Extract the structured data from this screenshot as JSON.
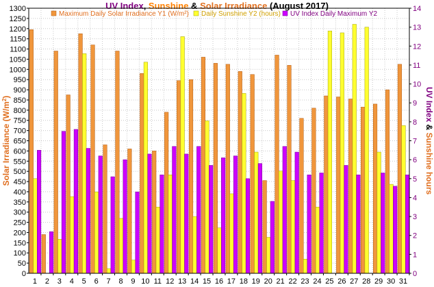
{
  "chart_data": {
    "type": "bar",
    "title_parts": [
      {
        "text": "UV Index",
        "color": "#800080"
      },
      {
        "text": ", ",
        "color": "#000000"
      },
      {
        "text": "Sunshine",
        "color": "#FF8000"
      },
      {
        "text": " & ",
        "color": "#000000"
      },
      {
        "text": "Solar Irradiance",
        "color": "#E07020"
      },
      {
        "text": " (August 2017)",
        "color": "#000000"
      }
    ],
    "categories": [
      "1",
      "2",
      "3",
      "4",
      "5",
      "6",
      "7",
      "8",
      "9",
      "10",
      "11",
      "12",
      "13",
      "14",
      "15",
      "16",
      "17",
      "18",
      "19",
      "20",
      "21",
      "22",
      "23",
      "24",
      "25",
      "26",
      "27",
      "28",
      "29",
      "30",
      "31"
    ],
    "y1": {
      "label_main": "Solar Irradiance (W/m",
      "label_sup": "2",
      "label_end": ")",
      "min": 0,
      "max": 1300,
      "step": 50,
      "color": "#E06E1E"
    },
    "y2": {
      "label_parts": [
        {
          "text": "UV Index",
          "color": "#800080"
        },
        {
          "text": " & ",
          "color": "#000000"
        },
        {
          "text": "Sunshine hours",
          "color": "#E06E1E"
        }
      ],
      "min": 0,
      "max": 14,
      "step": 1,
      "color": "#800080"
    },
    "series": [
      {
        "name": "Maximum Daily Solar Irradiance Y1 (W/m²)",
        "axis": "y1",
        "color": "#F0963C",
        "stroke": "#B05A10",
        "values": [
          1195,
          190,
          1090,
          875,
          1175,
          1120,
          630,
          1090,
          610,
          980,
          600,
          790,
          945,
          950,
          1060,
          1030,
          1025,
          990,
          975,
          455,
          1070,
          1020,
          760,
          810,
          870,
          865,
          855,
          815,
          830,
          900,
          1025
        ]
      },
      {
        "name": "Daily Sunshine Y2 (hours)",
        "axis": "y2",
        "color": "#FFFF30",
        "stroke": "#A0A000",
        "values": [
          5.0,
          0.0,
          1.8,
          4.05,
          11.6,
          4.3,
          0.25,
          2.9,
          0.7,
          11.15,
          3.5,
          5.2,
          12.5,
          3.0,
          8.05,
          2.4,
          4.2,
          9.5,
          6.4,
          1.9,
          5.4,
          4.9,
          0.75,
          3.5,
          12.8,
          12.7,
          13.15,
          13.0,
          6.4,
          4.7,
          7.8
        ]
      },
      {
        "name": "UV Index Daily Maximum Y2",
        "axis": "y2",
        "color": "#CC00FF",
        "stroke": "#700090",
        "values": [
          6.5,
          2.2,
          7.5,
          7.6,
          6.6,
          6.2,
          5.1,
          6.0,
          4.3,
          6.3,
          5.2,
          6.7,
          6.3,
          6.7,
          5.7,
          6.1,
          6.2,
          5.0,
          5.8,
          3.8,
          6.7,
          6.4,
          5.2,
          5.3,
          0,
          5.7,
          5.2,
          0,
          5.3,
          4.6,
          5.2
        ]
      }
    ],
    "grid": true,
    "legend_position": "top"
  }
}
